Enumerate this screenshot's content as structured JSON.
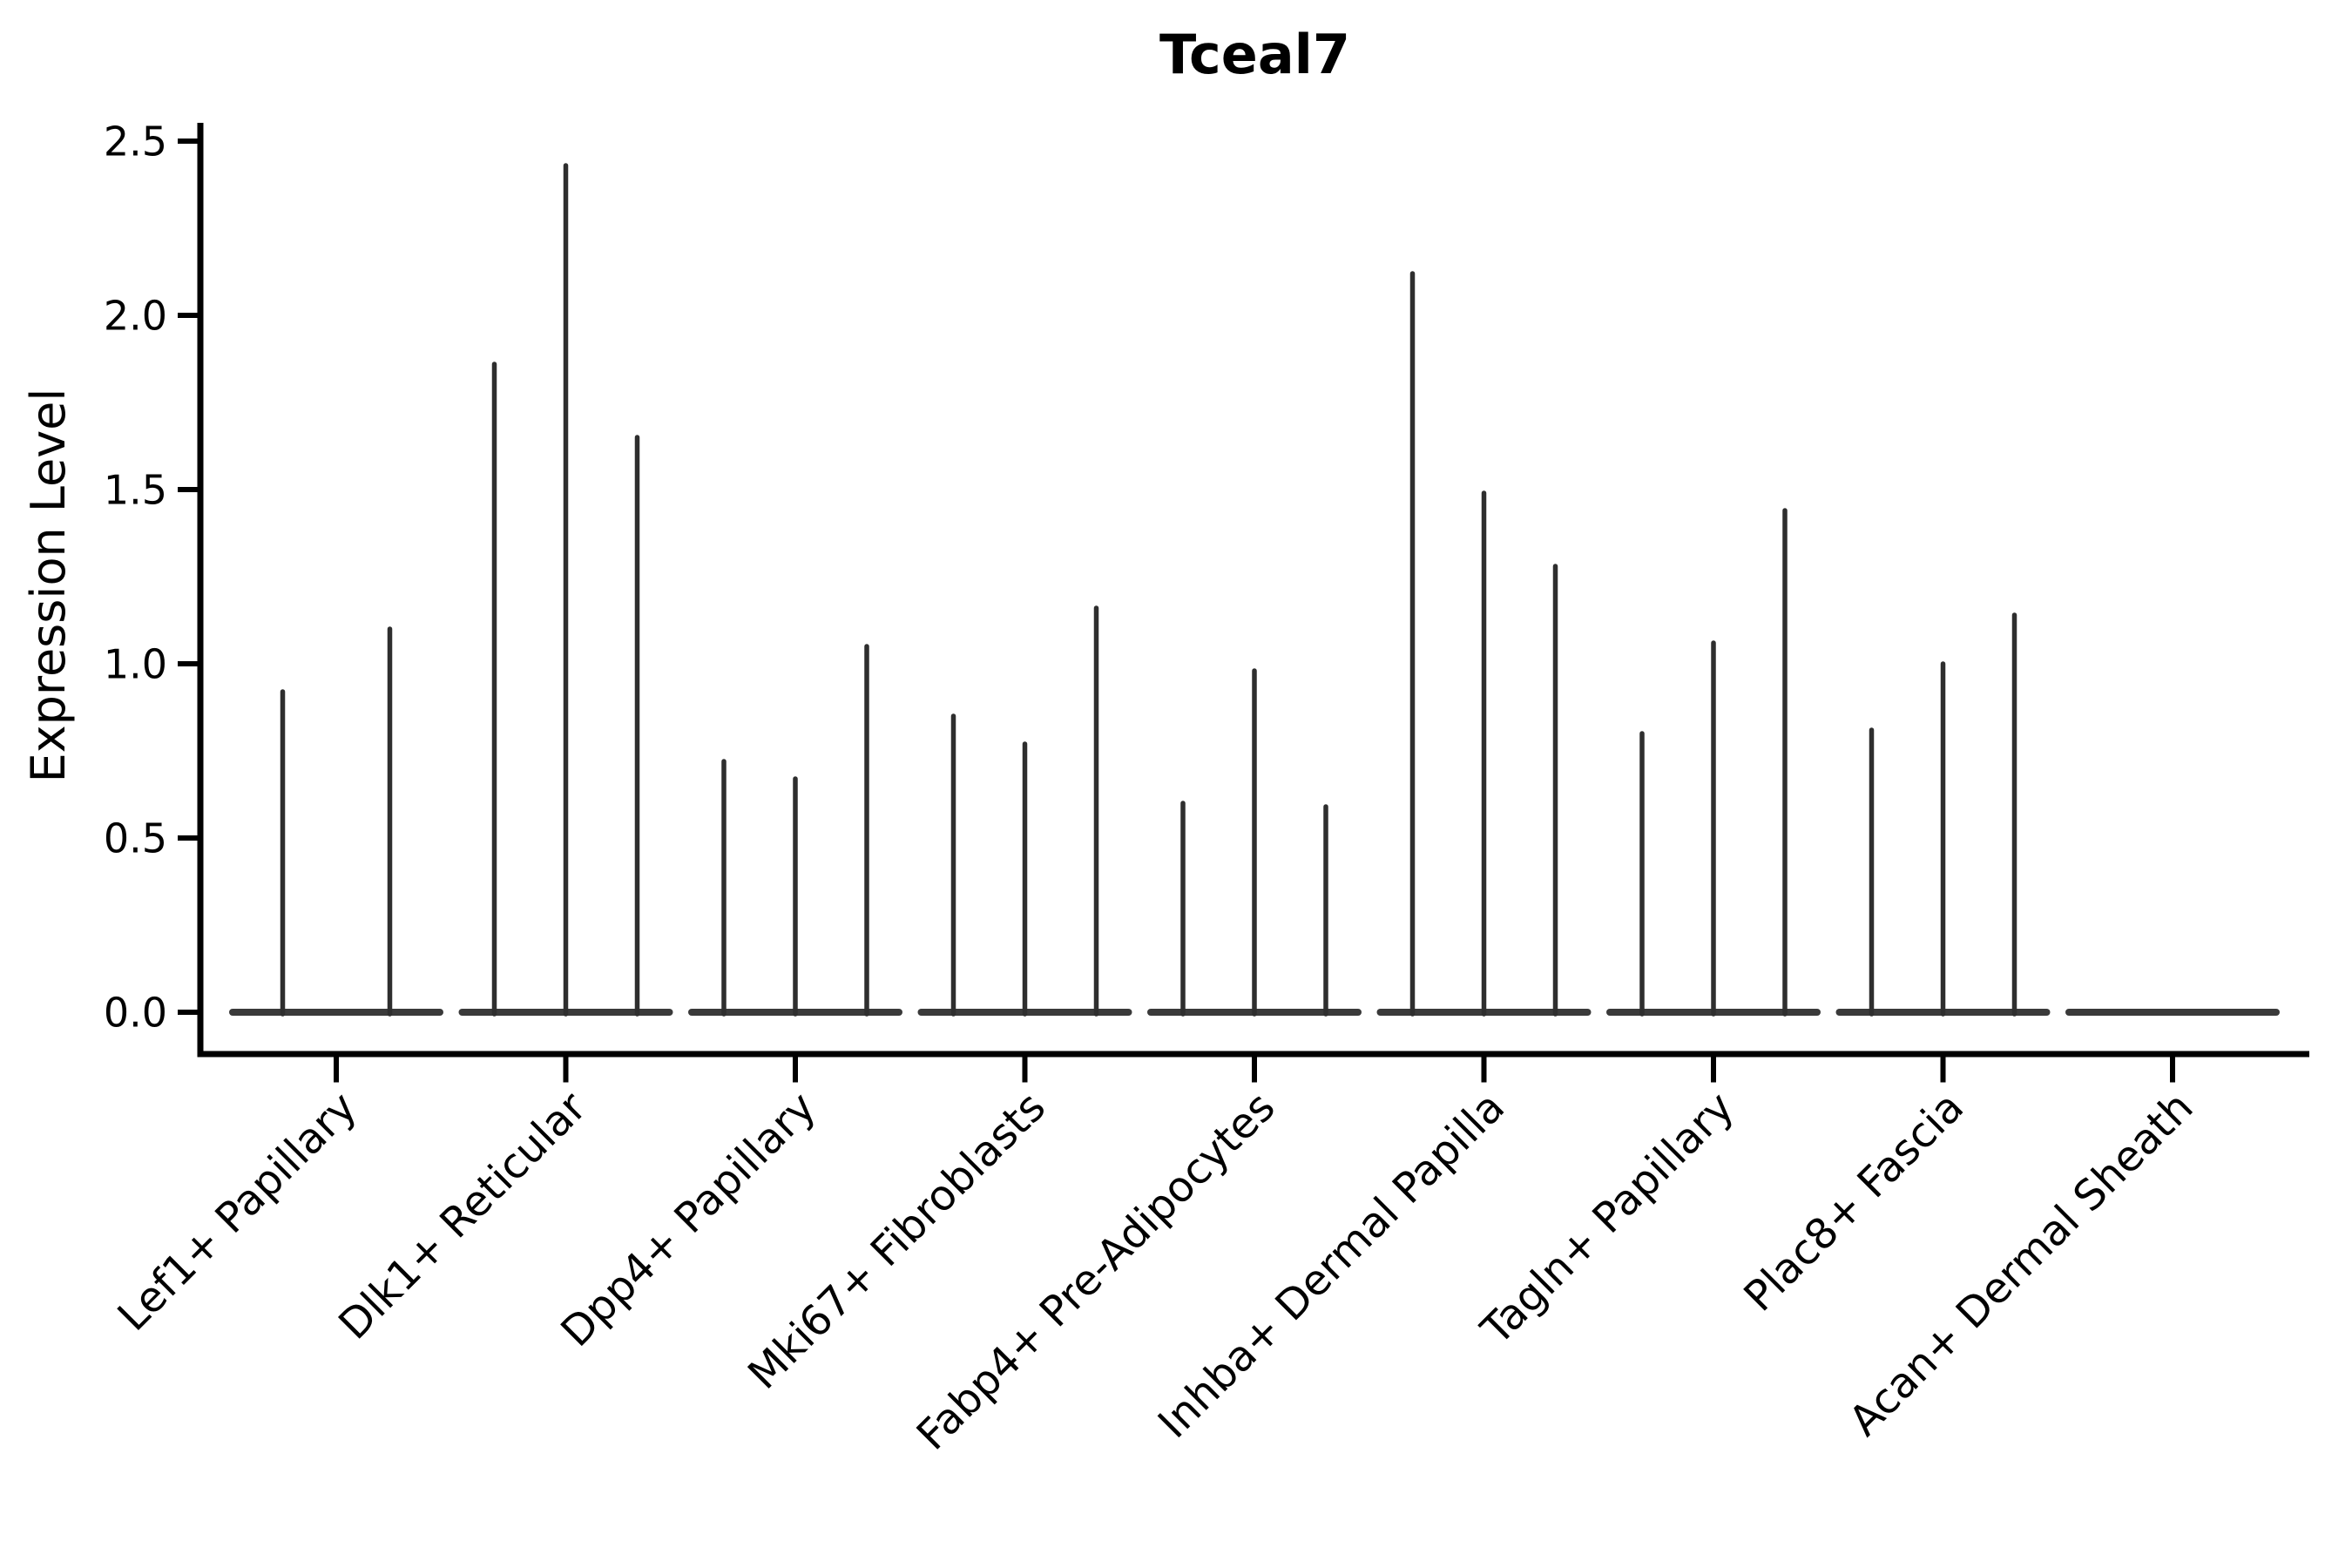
{
  "chart_data": {
    "type": "violin",
    "title": "Tceal7",
    "xlabel": "",
    "ylabel": "Expression Level",
    "ylim": [
      0.0,
      2.5
    ],
    "yticks": [
      0.0,
      0.5,
      1.0,
      1.5,
      2.0,
      2.5
    ],
    "ytick_labels": [
      "0.0",
      "0.5",
      "1.0",
      "1.5",
      "2.0",
      "2.5"
    ],
    "x_tick_rotation_deg": 45,
    "grid": false,
    "legend": "none",
    "description": "Violin plot of Tceal7 expression per fibroblast cluster; violins are collapsed onto the zero baseline with thin spikes rising to each violin's maximum expression value.",
    "categories": [
      "Lef1+ Papillary",
      "Dlk1+ Reticular",
      "Dpp4+ Papillary",
      "Mki67+ Fibroblasts",
      "Fabp4+ Pre-Adipocytes",
      "Inhba+ Dermal Papilla",
      "Tagln+ Papillary",
      "Plac8+ Fascia",
      "Acan+ Dermal Sheath"
    ],
    "groups": [
      {
        "label": "Lef1+ Papillary",
        "spike_max_values": [
          0.92,
          1.1
        ]
      },
      {
        "label": "Dlk1+ Reticular",
        "spike_max_values": [
          1.86,
          2.43,
          1.65
        ]
      },
      {
        "label": "Dpp4+ Papillary",
        "spike_max_values": [
          0.72,
          0.67,
          1.05
        ]
      },
      {
        "label": "Mki67+ Fibroblasts",
        "spike_max_values": [
          0.85,
          0.77,
          1.16
        ]
      },
      {
        "label": "Fabp4+ Pre-Adipocytes",
        "spike_max_values": [
          0.6,
          0.98,
          0.59
        ]
      },
      {
        "label": "Inhba+ Dermal Papilla",
        "spike_max_values": [
          2.12,
          1.49,
          1.28
        ]
      },
      {
        "label": "Tagln+ Papillary",
        "spike_max_values": [
          0.8,
          1.06,
          1.44
        ]
      },
      {
        "label": "Plac8+ Fascia",
        "spike_max_values": [
          0.81,
          1.0,
          1.14
        ]
      },
      {
        "label": "Acan+ Dermal Sheath",
        "spike_max_values": []
      }
    ],
    "colors": {
      "spike": "#2e2e2e",
      "baseline": "#3a3a3a",
      "axis": "#000000",
      "text": "#000000",
      "background": "#ffffff"
    }
  }
}
